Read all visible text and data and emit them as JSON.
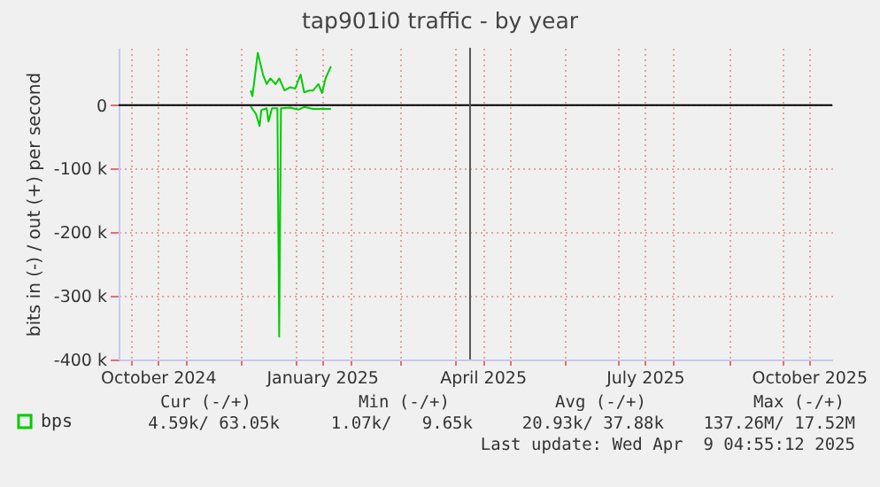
{
  "chart_data": {
    "type": "line",
    "title": "tap901i0 traffic - by year",
    "ylabel": "bits in (-) / out (+) per second",
    "xlim": [
      "2024-09-24",
      "2025-10-29"
    ],
    "xticks": [
      {
        "value": "2024-10-01",
        "label": null
      },
      {
        "value": "2024-10-16",
        "label": "October 2024"
      },
      {
        "value": "2024-11-01",
        "label": null
      },
      {
        "value": "2024-12-01",
        "label": null
      },
      {
        "value": "2025-01-01",
        "label": null
      },
      {
        "value": "2025-01-16",
        "label": "January 2025"
      },
      {
        "value": "2025-02-01",
        "label": null
      },
      {
        "value": "2025-03-01",
        "label": null
      },
      {
        "value": "2025-04-01",
        "label": null
      },
      {
        "value": "2025-04-16",
        "label": "April 2025"
      },
      {
        "value": "2025-05-01",
        "label": null
      },
      {
        "value": "2025-06-01",
        "label": null
      },
      {
        "value": "2025-07-01",
        "label": null
      },
      {
        "value": "2025-07-16",
        "label": "July 2025"
      },
      {
        "value": "2025-08-01",
        "label": null
      },
      {
        "value": "2025-09-01",
        "label": null
      },
      {
        "value": "2025-10-01",
        "label": null
      },
      {
        "value": "2025-10-16",
        "label": "October 2025"
      }
    ],
    "ylim": [
      -400000,
      90000
    ],
    "yticks": [
      {
        "value": -400000,
        "label": "-400 k"
      },
      {
        "value": -300000,
        "label": "-300 k"
      },
      {
        "value": -200000,
        "label": "-200 k"
      },
      {
        "value": -100000,
        "label": "-100 k"
      },
      {
        "value": 0,
        "label": "0"
      }
    ],
    "grid": true,
    "legend": "bottom left",
    "series": [
      {
        "name": "bps",
        "color": "#00cc00",
        "x": [
          "2024-12-07",
          "2024-12-08",
          "2024-12-11",
          "2024-12-14",
          "2024-12-16",
          "2024-12-18",
          "2024-12-21",
          "2024-12-23",
          "2024-12-26",
          "2024-12-29",
          "2025-01-01",
          "2025-01-04",
          "2025-01-06",
          "2025-01-09",
          "2025-01-11",
          "2025-01-14",
          "2025-01-16",
          "2025-01-18",
          "2025-01-21"
        ],
        "values": [
          23000,
          14000,
          82000,
          47000,
          33000,
          42000,
          33000,
          42000,
          23000,
          28000,
          26000,
          48000,
          20000,
          23000,
          23000,
          33000,
          19000,
          42000,
          61000
        ]
      },
      {
        "color": "#00cc00",
        "x": [
          "2024-12-07",
          "2024-12-10",
          "2024-12-12",
          "2024-12-13",
          "2024-12-16",
          "2024-12-17",
          "2024-12-19",
          "2024-12-22",
          "2024-12-23",
          "2024-12-24",
          "2024-12-29",
          "2025-01-03",
          "2025-01-06",
          "2025-01-11",
          "2025-01-21"
        ],
        "values": [
          -2000,
          -14000,
          -33000,
          -8000,
          -5000,
          -26000,
          -5000,
          -5000,
          -364000,
          -5000,
          -4000,
          -7000,
          -3000,
          -6000,
          -6000
        ]
      }
    ],
    "ref_lines": [
      {
        "axis": "y",
        "value": 0,
        "color": "#000000"
      },
      {
        "axis": "x",
        "value": "2025-04-09",
        "color": "#555555"
      }
    ],
    "annotations": [
      "Cur (-/+)",
      "Min (-/+)",
      "Avg (-/+)",
      "Max (-/+)",
      "4.59k/ 63.05k",
      "1.07k/   9.65k",
      "20.93k/ 37.88k",
      "137.26M/ 17.52M",
      "Last update: Wed Apr  9 04:55:12 2025"
    ]
  }
}
